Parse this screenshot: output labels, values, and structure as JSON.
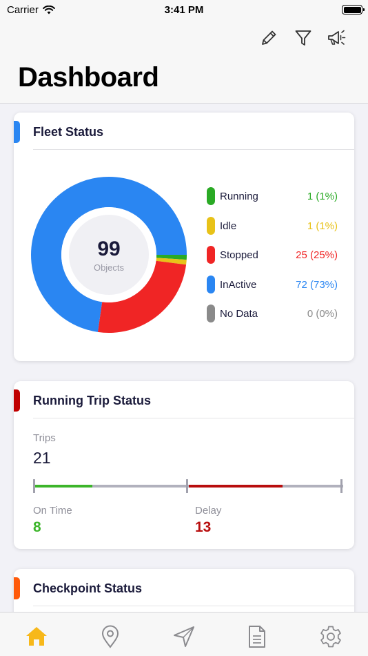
{
  "status_bar": {
    "carrier": "Carrier",
    "time": "3:41 PM"
  },
  "header": {
    "title": "Dashboard",
    "actions": [
      {
        "icon": "pencil-icon"
      },
      {
        "icon": "filter-icon"
      },
      {
        "icon": "megaphone-icon"
      }
    ]
  },
  "fleet_status": {
    "title": "Fleet Status",
    "accent": "#2a86f2",
    "total": "99",
    "total_label": "Objects",
    "items": [
      {
        "label": "Running",
        "value": "1 (1%)",
        "count": 1,
        "color": "#2aaa25"
      },
      {
        "label": "Idle",
        "value": "1 (1%)",
        "count": 1,
        "color": "#e8c218"
      },
      {
        "label": "Stopped",
        "value": "25 (25%)",
        "count": 25,
        "color": "#f02525"
      },
      {
        "label": "InActive",
        "value": "72 (73%)",
        "count": 72,
        "color": "#2a86f2"
      },
      {
        "label": "No Data",
        "value": "0 (0%)",
        "count": 0,
        "color": "#8a8a8a"
      }
    ]
  },
  "running_trip_status": {
    "title": "Running Trip Status",
    "accent": "#c00000",
    "trips_label": "Trips",
    "trips_value": "21",
    "on_time_label": "On Time",
    "on_time_value": "8",
    "on_time_color": "#3cb52a",
    "delay_label": "Delay",
    "delay_value": "13",
    "delay_color": "#b80d0d"
  },
  "checkpoint_status": {
    "title": "Checkpoint Status",
    "accent": "#ff5a0a"
  },
  "tab_bar": {
    "active_color": "#f7b81a",
    "tabs": [
      {
        "icon": "home-icon",
        "active": true
      },
      {
        "icon": "location-pin-icon",
        "active": false
      },
      {
        "icon": "navigation-arrow-icon",
        "active": false
      },
      {
        "icon": "report-icon",
        "active": false
      },
      {
        "icon": "settings-gear-icon",
        "active": false
      }
    ]
  }
}
